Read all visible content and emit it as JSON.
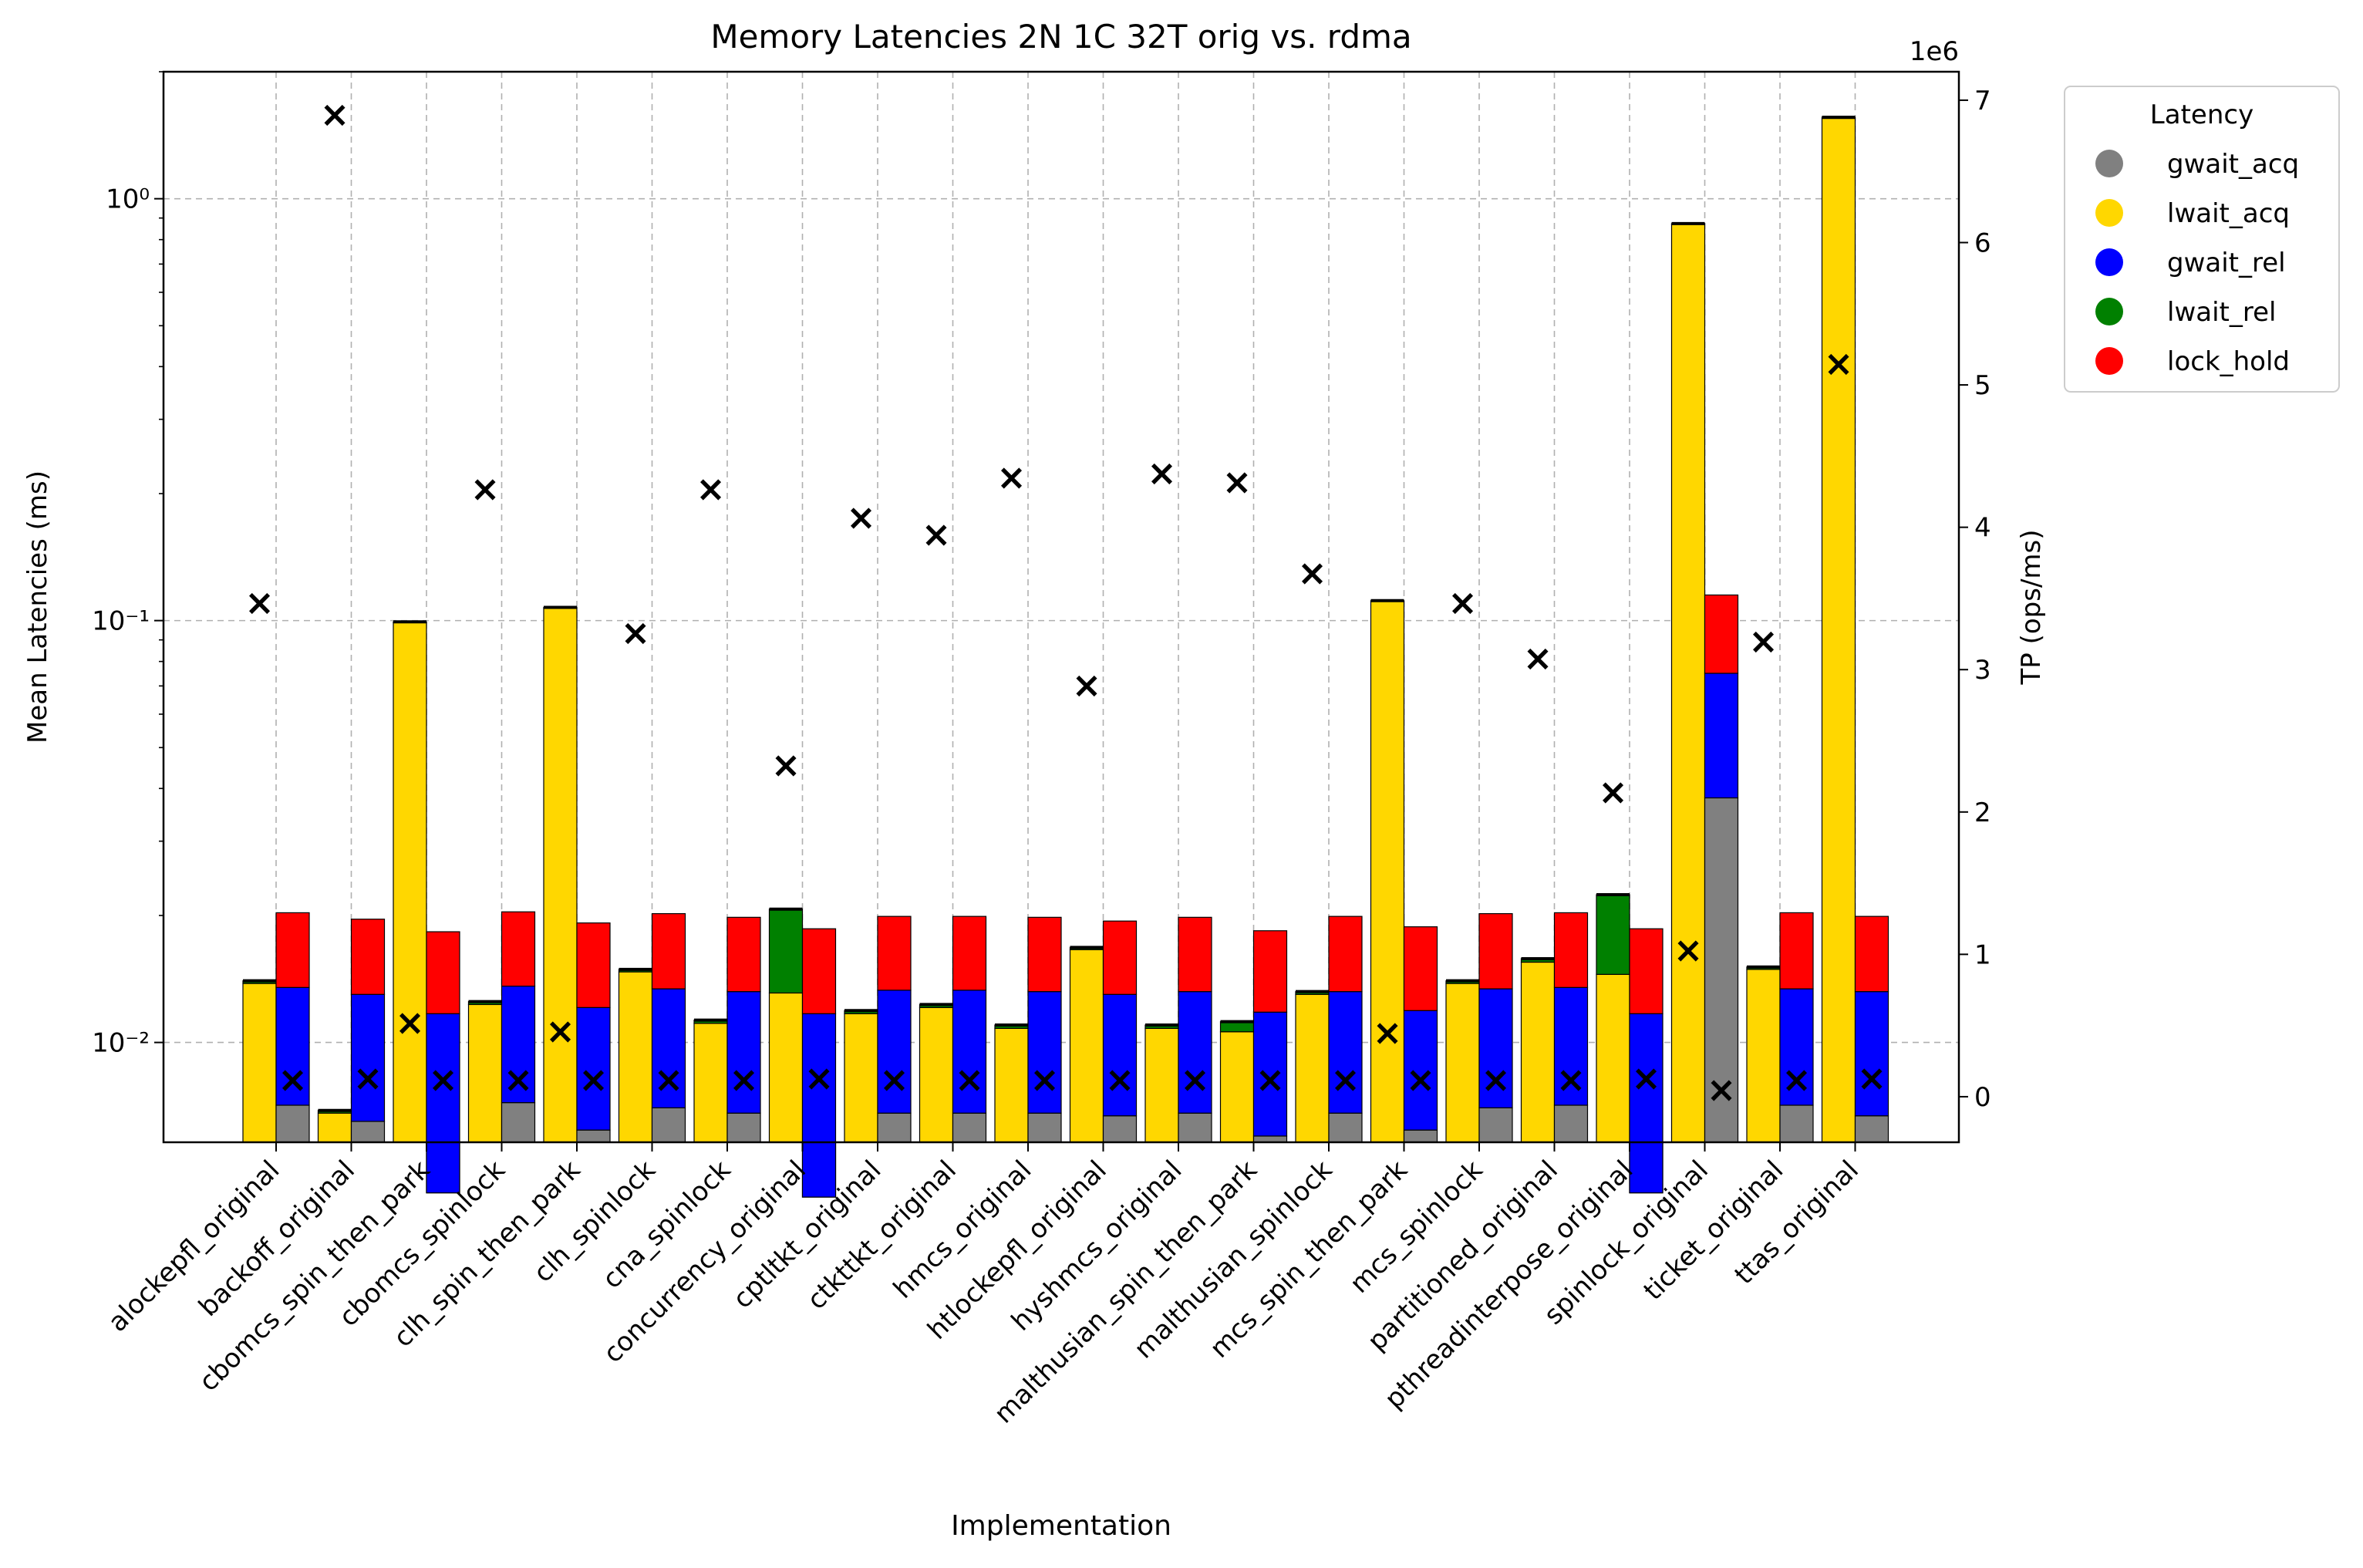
{
  "chart_data": {
    "type": "bar",
    "title": "Memory Latencies 2N 1C 32T orig vs. rdma",
    "xlabel": "Implementation",
    "ylabel": "Mean Latencies (ms)",
    "ylabel_right": "TP (ops/ms)",
    "right_axis_offset_text": "1e6",
    "y_scale": "log",
    "ylim": [
      0.0058,
      2.0
    ],
    "ylim_right": [
      -320000,
      7200000
    ],
    "y_ticks": [
      0.01,
      0.1,
      1
    ],
    "y_tick_labels": [
      "10⁻²",
      "10⁻¹",
      "10⁰"
    ],
    "y_right_ticks": [
      0,
      1,
      2,
      3,
      4,
      5,
      6,
      7
    ],
    "grid": true,
    "legend_title": "Latency",
    "legend_position": "outside-right",
    "colors": {
      "gwait_acq": "#808080",
      "lwait_acq": "#ffd700",
      "gwait_rel": "#0000ff",
      "lwait_rel": "#008000",
      "lock_hold": "#ff0000"
    },
    "series_names": [
      "gwait_acq",
      "lwait_acq",
      "gwait_rel",
      "lwait_rel",
      "lock_hold"
    ],
    "categories": [
      "alockepfl_original",
      "backoff_original",
      "cbomcs_spin_then_park",
      "cbomcs_spinlock",
      "clh_spin_then_park",
      "clh_spinlock",
      "cna_spinlock",
      "concurrency_original",
      "cptltkt_original",
      "ctkttkt_original",
      "hmcs_original",
      "htlockepfl_original",
      "hyshmcs_original",
      "malthusian_spin_then_park",
      "malthusian_spinlock",
      "mcs_spin_then_park",
      "mcs_spinlock",
      "partitioned_original",
      "pthreadinterpose_original",
      "spinlock_original",
      "ticket_original",
      "ttas_original"
    ],
    "orig": {
      "gwait_acq": [
        0,
        0,
        0,
        0,
        0,
        0,
        0,
        0,
        0,
        0,
        0,
        0,
        0,
        0,
        0,
        0,
        0,
        0,
        0,
        0,
        0,
        0
      ],
      "lwait_acq": [
        0.0138,
        0.0068,
        0.099,
        0.0123,
        0.107,
        0.0147,
        0.0111,
        0.0131,
        0.0117,
        0.0121,
        0.0108,
        0.0166,
        0.0108,
        0.0106,
        0.013,
        0.111,
        0.0138,
        0.0155,
        0.0145,
        0.87,
        0.0149,
        1.55
      ],
      "lwait_rel": [
        0.014,
        0.0069,
        0.0993,
        0.0125,
        0.1075,
        0.0149,
        0.0113,
        0.0207,
        0.0119,
        0.0123,
        0.011,
        0.0168,
        0.011,
        0.0112,
        0.0132,
        0.1115,
        0.014,
        0.0158,
        0.0224,
        0.873,
        0.0151,
        1.56
      ]
    },
    "rdma": {
      "gwait_acq": [
        0.0071,
        0.0065,
        0.0044,
        0.0072,
        0.0062,
        0.007,
        0.0068,
        0.0043,
        0.0068,
        0.0068,
        0.0068,
        0.0067,
        0.0068,
        0.006,
        0.0068,
        0.0062,
        0.007,
        0.0071,
        0.0044,
        0.038,
        0.0071,
        0.0067
      ],
      "gwait_rel": [
        0.0135,
        0.013,
        0.0117,
        0.0136,
        0.0121,
        0.0134,
        0.0132,
        0.0117,
        0.0133,
        0.0133,
        0.0132,
        0.013,
        0.0132,
        0.0118,
        0.0132,
        0.0119,
        0.0134,
        0.0135,
        0.0117,
        0.075,
        0.0134,
        0.0132
      ],
      "lock_hold": [
        0.0203,
        0.0196,
        0.0183,
        0.0204,
        0.0192,
        0.0202,
        0.0198,
        0.0186,
        0.0199,
        0.0199,
        0.0198,
        0.0194,
        0.0198,
        0.0184,
        0.0199,
        0.0188,
        0.0202,
        0.0203,
        0.0186,
        0.115,
        0.0203,
        0.0199
      ]
    },
    "throughput_orig": [
      3450000,
      6880000,
      500000,
      4250000,
      440000,
      3240000,
      4250000,
      2310000,
      4050000,
      3930000,
      4330000,
      2870000,
      4360000,
      4300000,
      3660000,
      430000,
      3450000,
      3060000,
      2120000,
      1010000,
      3180000,
      5130000
    ],
    "throughput_rdma": [
      100000,
      110000,
      100000,
      100000,
      100000,
      100000,
      100000,
      110000,
      100000,
      100000,
      100000,
      100000,
      100000,
      100000,
      100000,
      100000,
      100000,
      100000,
      110000,
      30000,
      100000,
      110000
    ],
    "marker": "×"
  }
}
